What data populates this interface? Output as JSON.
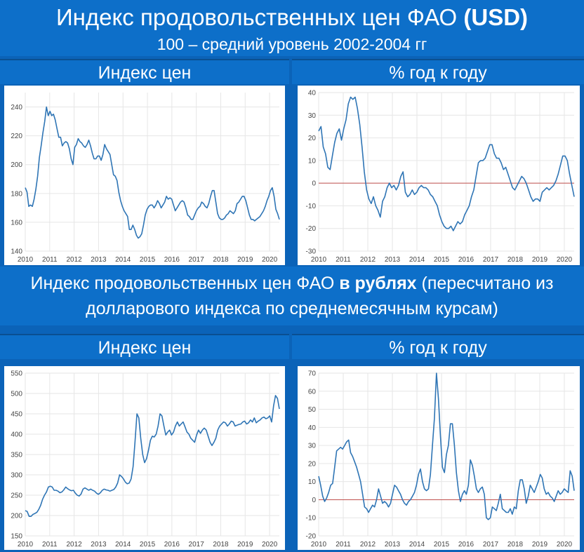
{
  "title": {
    "line1": "Индекс продовольственных цен ФАО",
    "line1_bold": "(USD)",
    "line2": "100 – средний уровень 2002-2004 гг"
  },
  "section2": {
    "line1_prefix": "Индекс продовольственных цен ФАО ",
    "line1_bold": "в рублях",
    "line1_suffix": " (пересчитано из",
    "line2": "долларового индекса по среднемесячным курсам)"
  },
  "headers": {
    "top_left": "Индекс цен",
    "top_right": "% год к году",
    "bottom_left": "Индекс цен",
    "bottom_right": "% год к году"
  },
  "colors": {
    "line": "#2f75b5",
    "zero": "#c0504d",
    "grid": "#e6e6e6"
  },
  "chart_data": [
    {
      "id": "usd_index",
      "type": "line",
      "x_start": 2010.0,
      "x_step": 0.08333,
      "xlim": [
        2010,
        2020.4
      ],
      "xticks": [
        2010,
        2011,
        2012,
        2013,
        2014,
        2015,
        2016,
        2017,
        2018,
        2019,
        2020
      ],
      "ylim": [
        140,
        250
      ],
      "yticks": [
        140,
        160,
        180,
        200,
        220,
        240
      ],
      "zero_line": false,
      "values": [
        184,
        181,
        171,
        172,
        171,
        176,
        183,
        192,
        205,
        213,
        222,
        230,
        240,
        234,
        237,
        234,
        235,
        231,
        225,
        219,
        219,
        213,
        215,
        216,
        215,
        211,
        204,
        200,
        212,
        214,
        218,
        216,
        215,
        213,
        212,
        214,
        217,
        213,
        208,
        204,
        204,
        206,
        206,
        203,
        207,
        214,
        211,
        209,
        207,
        200,
        193,
        192,
        189,
        181,
        175,
        171,
        168,
        166,
        164,
        155,
        155,
        158,
        155,
        151,
        149,
        150,
        152,
        158,
        165,
        169,
        171,
        172,
        172,
        170,
        172,
        175,
        173,
        170,
        172,
        174,
        178,
        176,
        177,
        176,
        172,
        168,
        170,
        172,
        174,
        175,
        174,
        170,
        165,
        164,
        162,
        162,
        165,
        168,
        170,
        171,
        174,
        173,
        171,
        170,
        173,
        178,
        182,
        182,
        174,
        166,
        163,
        162,
        162,
        163,
        165,
        166,
        168,
        167,
        166,
        168,
        173,
        174,
        176,
        178,
        178,
        175,
        170,
        165,
        162,
        162,
        161,
        162,
        163,
        164,
        166,
        168,
        171,
        175,
        178,
        182,
        184,
        178,
        169,
        166,
        162
      ],
      "values_note": ""
    },
    {
      "id": "usd_yoy",
      "type": "line",
      "x_start": 2010.0,
      "x_step": 0.08333,
      "xlim": [
        2010,
        2020.4
      ],
      "xticks": [
        2010,
        2011,
        2012,
        2013,
        2014,
        2015,
        2016,
        2017,
        2018,
        2019,
        2020
      ],
      "ylim": [
        -30,
        40
      ],
      "yticks": [
        -30,
        -20,
        -10,
        0,
        10,
        20,
        30,
        40
      ],
      "zero_line": true,
      "values": [
        23,
        25,
        16,
        13,
        7,
        6,
        12,
        18,
        22,
        24,
        19,
        24,
        28,
        35,
        38,
        37,
        38,
        33,
        26,
        16,
        5,
        -3,
        -7,
        -9,
        -6,
        -10,
        -12,
        -15,
        -8,
        -6,
        -2,
        0,
        -2,
        -1,
        -3,
        -1,
        3,
        5,
        -4,
        -6,
        -5,
        -3,
        -5,
        -4,
        -2,
        -1,
        -2,
        -2,
        -3,
        -5,
        -6,
        -8,
        -10,
        -14,
        -17,
        -19,
        -20,
        -20,
        -19,
        -21,
        -19,
        -17,
        -18,
        -17,
        -14,
        -12,
        -10,
        -6,
        -3,
        3,
        9,
        10,
        10,
        11,
        14,
        17,
        17,
        13,
        11,
        11,
        9,
        6,
        7,
        4,
        1,
        -2,
        -3,
        -1,
        1,
        3,
        2,
        0,
        -3,
        -6,
        -8,
        -7,
        -7,
        -8,
        -4,
        -3,
        -2,
        -3,
        -2,
        -1,
        1,
        4,
        8,
        12,
        12,
        10,
        4,
        -1,
        -6
      ]
    },
    {
      "id": "rub_index",
      "type": "line",
      "x_start": 2010.0,
      "x_step": 0.08333,
      "xlim": [
        2010,
        2020.4
      ],
      "xticks": [
        2010,
        2011,
        2012,
        2013,
        2014,
        2015,
        2016,
        2017,
        2018,
        2019,
        2020
      ],
      "ylim": [
        150,
        550
      ],
      "yticks": [
        150,
        200,
        250,
        300,
        350,
        400,
        450,
        500,
        550
      ],
      "zero_line": false,
      "values": [
        212,
        210,
        198,
        198,
        203,
        205,
        208,
        215,
        225,
        240,
        250,
        258,
        270,
        272,
        270,
        262,
        262,
        260,
        256,
        258,
        263,
        270,
        266,
        263,
        261,
        262,
        255,
        250,
        248,
        253,
        265,
        268,
        265,
        262,
        265,
        262,
        260,
        255,
        252,
        256,
        262,
        265,
        263,
        262,
        260,
        262,
        264,
        270,
        280,
        300,
        296,
        290,
        282,
        278,
        280,
        290,
        320,
        380,
        450,
        440,
        390,
        350,
        330,
        340,
        360,
        385,
        395,
        393,
        400,
        420,
        450,
        445,
        420,
        398,
        405,
        410,
        398,
        405,
        420,
        430,
        420,
        425,
        430,
        418,
        405,
        400,
        390,
        385,
        380,
        398,
        410,
        402,
        410,
        415,
        410,
        395,
        380,
        372,
        380,
        390,
        410,
        420,
        425,
        430,
        428,
        420,
        425,
        432,
        430,
        420,
        422,
        424,
        425,
        430,
        432,
        425,
        428,
        435,
        430,
        440,
        428,
        432,
        435,
        440,
        442,
        438,
        440,
        445,
        430,
        470,
        495,
        488,
        462
      ]
    },
    {
      "id": "rub_yoy",
      "type": "line",
      "x_start": 2010.0,
      "x_step": 0.08333,
      "xlim": [
        2010,
        2020.4
      ],
      "xticks": [
        2010,
        2011,
        2012,
        2013,
        2014,
        2015,
        2016,
        2017,
        2018,
        2019,
        2020
      ],
      "ylim": [
        -20,
        70
      ],
      "yticks": [
        -20,
        -10,
        0,
        10,
        20,
        30,
        40,
        50,
        60,
        70
      ],
      "zero_line": true,
      "values": [
        13,
        8,
        2,
        -1,
        1,
        4,
        8,
        9,
        18,
        27,
        28,
        29,
        28,
        30,
        32,
        33,
        26,
        24,
        21,
        18,
        14,
        10,
        3,
        -4,
        -5,
        -7,
        -5,
        -3,
        -4,
        0,
        6,
        2,
        -2,
        -1,
        -2,
        -4,
        -2,
        3,
        8,
        7,
        5,
        3,
        0,
        -2,
        -3,
        -1,
        0,
        2,
        4,
        8,
        14,
        17,
        10,
        6,
        5,
        6,
        14,
        30,
        45,
        70,
        56,
        35,
        18,
        15,
        25,
        30,
        42,
        42,
        30,
        15,
        5,
        -1,
        3,
        5,
        3,
        8,
        22,
        19,
        13,
        6,
        4,
        6,
        7,
        3,
        -10,
        -11,
        -10,
        -4,
        -5,
        -6,
        -2,
        3,
        -5,
        -6,
        -7,
        -7,
        -5,
        -8,
        -4,
        -5,
        5,
        11,
        11,
        6,
        -2,
        2,
        8,
        6,
        4,
        7,
        10,
        14,
        12,
        6,
        3,
        4,
        2,
        1,
        -1,
        2,
        5,
        3,
        4,
        6,
        5,
        4,
        16,
        13,
        5
      ]
    }
  ],
  "legend": {}
}
